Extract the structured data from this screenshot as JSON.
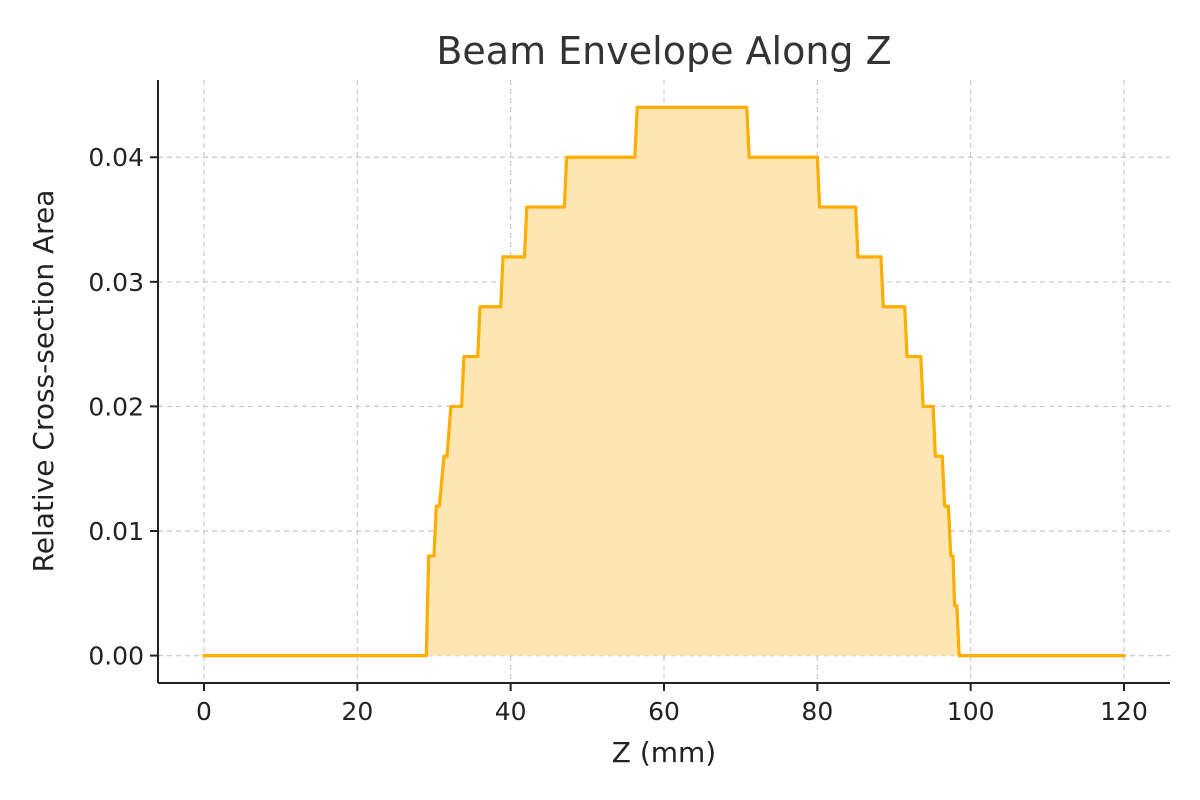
{
  "chart_data": {
    "type": "area",
    "title": "Beam Envelope Along Z",
    "xlabel": "Z (mm)",
    "ylabel": "Relative Cross-section Area",
    "xlim": [
      -6,
      126
    ],
    "ylim": [
      -0.0022,
      0.0462
    ],
    "x_ticks": [
      0,
      20,
      40,
      60,
      80,
      100,
      120
    ],
    "y_ticks": [
      0.0,
      0.01,
      0.02,
      0.03,
      0.04
    ],
    "x_tick_labels": [
      "0",
      "20",
      "40",
      "60",
      "80",
      "100",
      "120"
    ],
    "y_tick_labels": [
      "0.00",
      "0.01",
      "0.02",
      "0.03",
      "0.04"
    ],
    "grid": true,
    "legend": "none",
    "line_color": "#ffad00",
    "fill_color": "#fde5b4",
    "series": [
      {
        "x": [
          0,
          29,
          29.3,
          30,
          30.3,
          30.7,
          31.3,
          31.7,
          32.2,
          32.6,
          33.6,
          33.9,
          35.7,
          36.0,
          38.7,
          39.0,
          41.8,
          42.1,
          47.0,
          47.3,
          56.2,
          56.5,
          70.8,
          71.1,
          80.0,
          80.3,
          85.0,
          85.3,
          88.3,
          88.6,
          91.4,
          91.7,
          93.5,
          93.8,
          95.1,
          95.4,
          96.3,
          96.6,
          97.1,
          97.4,
          97.7,
          97.9,
          98.2,
          98.5,
          120
        ],
        "y": [
          0,
          0,
          0.008,
          0.008,
          0.012,
          0.012,
          0.016,
          0.016,
          0.02,
          0.02,
          0.02,
          0.024,
          0.024,
          0.028,
          0.028,
          0.032,
          0.032,
          0.036,
          0.036,
          0.04,
          0.04,
          0.044,
          0.044,
          0.04,
          0.04,
          0.036,
          0.036,
          0.032,
          0.032,
          0.028,
          0.028,
          0.024,
          0.024,
          0.02,
          0.02,
          0.016,
          0.016,
          0.012,
          0.012,
          0.008,
          0.008,
          0.004,
          0.004,
          0,
          0
        ]
      }
    ]
  }
}
